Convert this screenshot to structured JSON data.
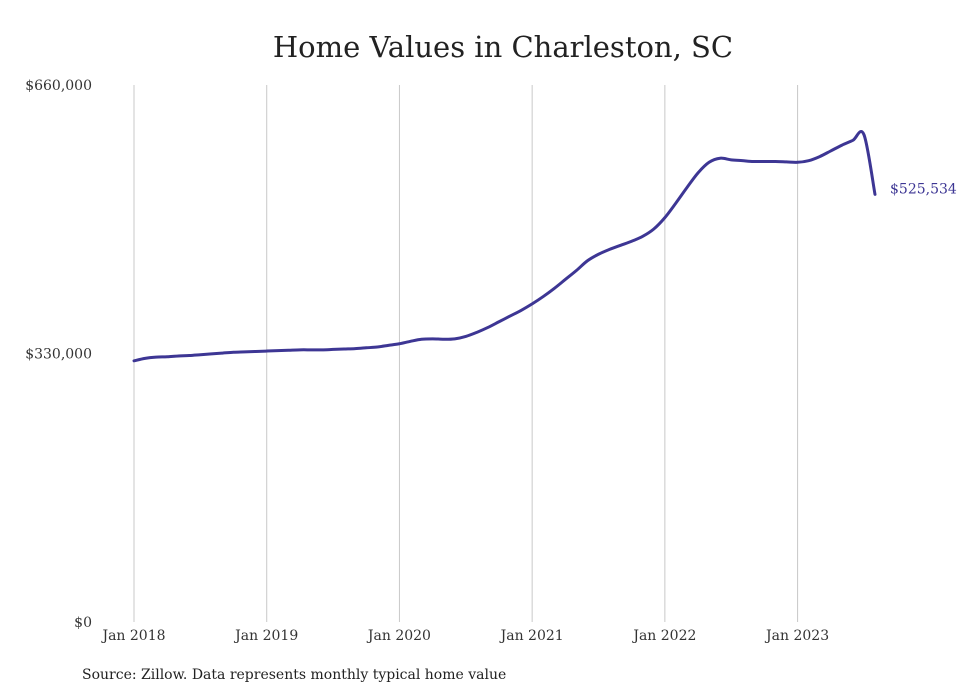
{
  "colors": {
    "series": "#3d3694",
    "grid": "#c8c8c8",
    "text": "#222222",
    "background": "#ffffff"
  },
  "chart_data": {
    "type": "line",
    "title": "Home Values in Charleston, SC",
    "source": "Source: Zillow. Data represents monthly typical home value",
    "xlabel": "",
    "ylabel": "",
    "x_ticks": [
      "Jan 2018",
      "Jan 2019",
      "Jan 2020",
      "Jan 2021",
      "Jan 2022",
      "Jan 2023"
    ],
    "y_ticks": [
      {
        "value": 0,
        "label": "$0"
      },
      {
        "value": 330000,
        "label": "$330,000"
      },
      {
        "value": 660000,
        "label": "$660,000"
      }
    ],
    "ylim": [
      0,
      660000
    ],
    "xlim": [
      "2018-01",
      "2023-08"
    ],
    "grid": "vertical",
    "end_label": "$525,534",
    "series": [
      {
        "x": [
          "2018-01",
          "2018-02",
          "2018-03",
          "2018-04",
          "2018-05",
          "2018-06",
          "2018-07",
          "2018-08",
          "2018-09",
          "2018-10",
          "2018-11",
          "2018-12",
          "2019-01",
          "2019-02",
          "2019-03",
          "2019-04",
          "2019-05",
          "2019-06",
          "2019-07",
          "2019-08",
          "2019-09",
          "2019-10",
          "2019-11",
          "2019-12",
          "2020-01",
          "2020-02",
          "2020-03",
          "2020-04",
          "2020-05",
          "2020-06",
          "2020-07",
          "2020-08",
          "2020-09",
          "2020-10",
          "2020-11",
          "2020-12",
          "2021-01",
          "2021-02",
          "2021-03",
          "2021-04",
          "2021-05",
          "2021-06",
          "2021-07",
          "2021-08",
          "2021-09",
          "2021-10",
          "2021-11",
          "2021-12",
          "2022-01",
          "2022-02",
          "2022-03",
          "2022-04",
          "2022-05",
          "2022-06",
          "2022-07",
          "2022-08",
          "2022-09",
          "2022-10",
          "2022-11",
          "2022-12",
          "2023-01",
          "2023-02",
          "2023-03",
          "2023-04",
          "2023-05",
          "2023-06",
          "2023-07",
          "2023-08"
        ],
        "values": [
          321000,
          324000,
          325500,
          326000,
          327000,
          327500,
          328500,
          329500,
          330500,
          331500,
          332000,
          332500,
          333000,
          333500,
          334000,
          334500,
          334500,
          334500,
          335000,
          335500,
          336000,
          337000,
          338000,
          340000,
          342000,
          345000,
          347500,
          348000,
          347500,
          348000,
          351000,
          356000,
          362000,
          369000,
          376000,
          383000,
          391000,
          400000,
          410000,
          421000,
          432000,
          444000,
          452000,
          458000,
          463000,
          468000,
          474000,
          483000,
          497000,
          515000,
          534000,
          552000,
          565000,
          570000,
          568000,
          567000,
          566000,
          566000,
          566000,
          565500,
          565000,
          567000,
          572000,
          579000,
          586000,
          592000,
          599000,
          525534
        ]
      }
    ]
  }
}
